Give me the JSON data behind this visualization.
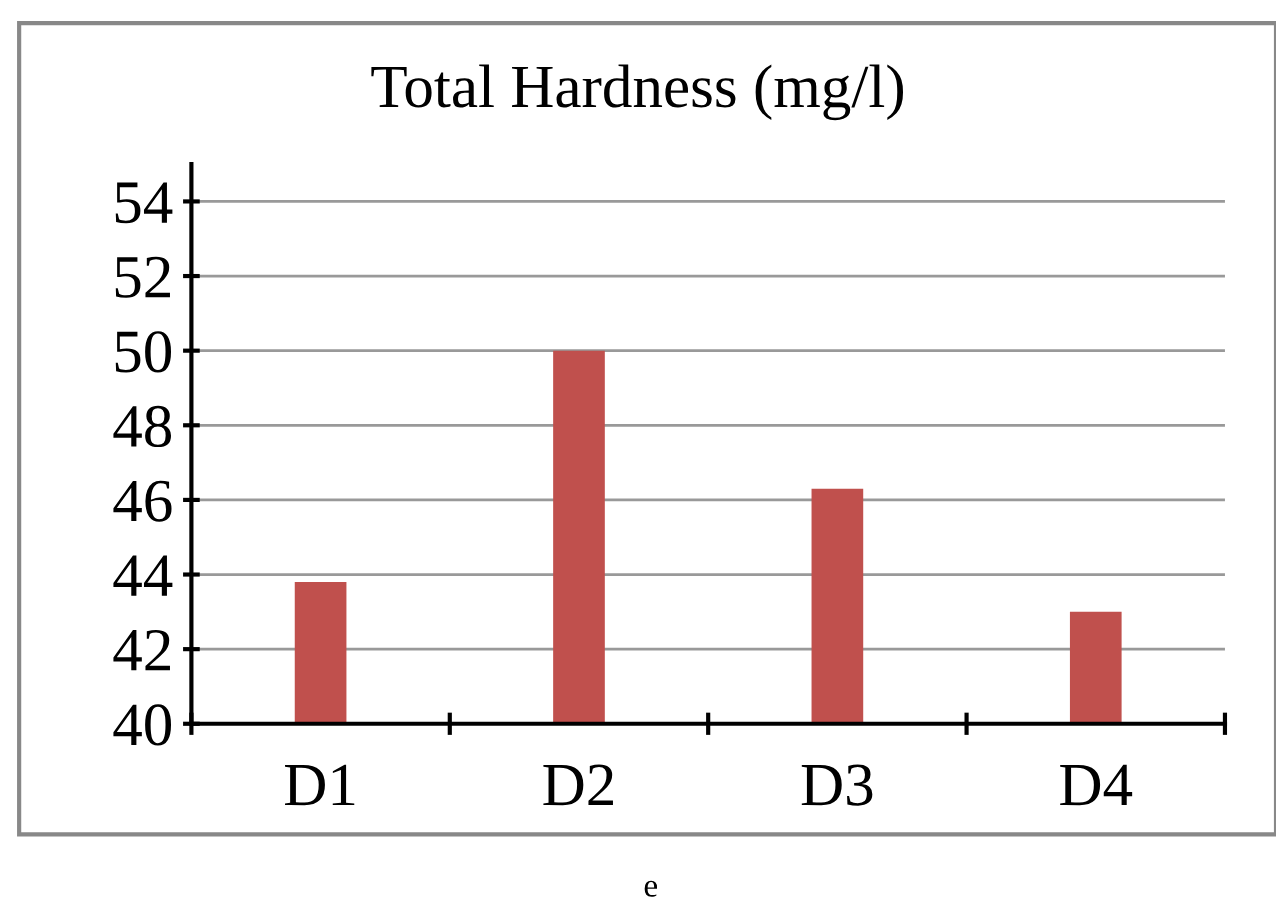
{
  "chart_data": {
    "type": "bar",
    "title": "Total Hardness (mg/l)",
    "categories": [
      "D1",
      "D2",
      "D3",
      "D4"
    ],
    "values": [
      43.8,
      50.0,
      46.3,
      43.0
    ],
    "color": "#c0504d",
    "ylim": [
      40,
      55
    ],
    "yticks": [
      40,
      42,
      44,
      46,
      48,
      50,
      52,
      54
    ],
    "grid": "y",
    "annotations": [
      "e"
    ]
  }
}
